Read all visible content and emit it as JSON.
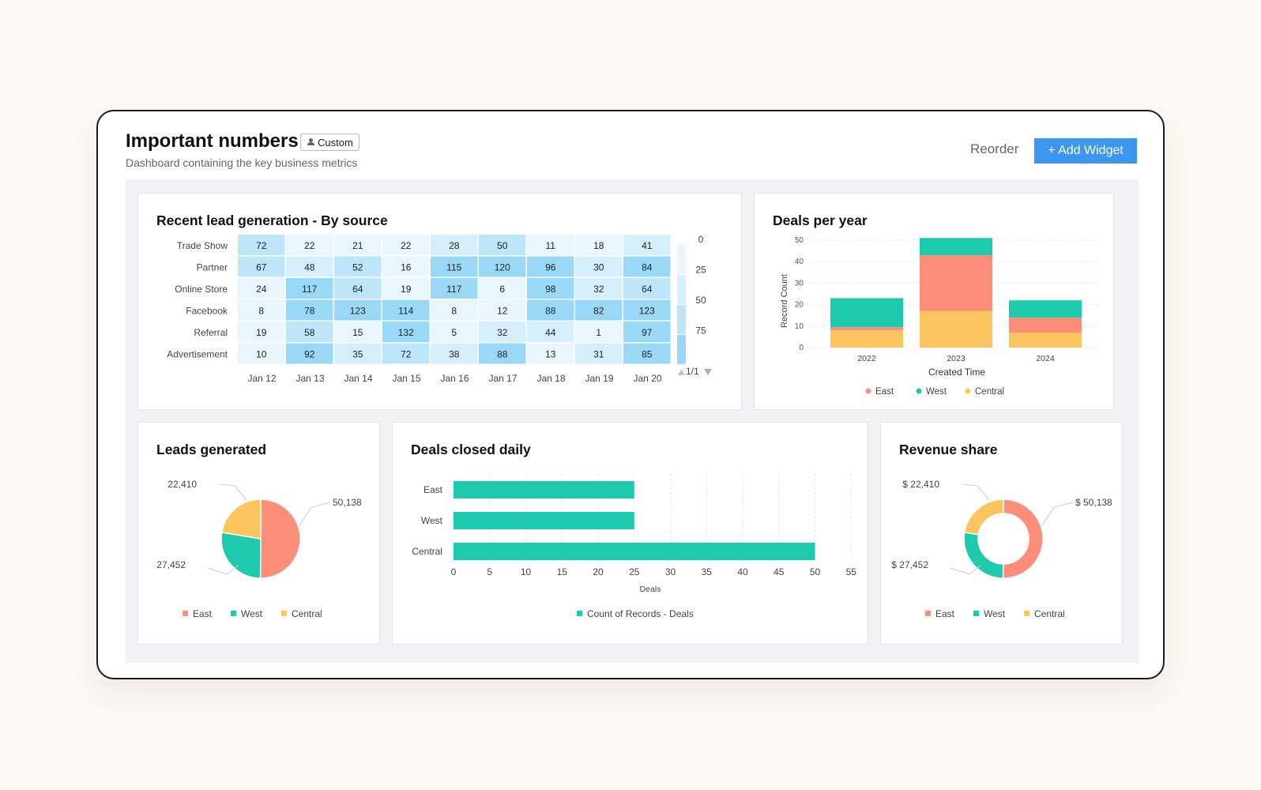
{
  "header": {
    "title": "Important numbers",
    "badge_label": "Custom",
    "subtitle": "Dashboard containing the key business metrics",
    "reorder_label": "Reorder",
    "add_widget_label": "+ Add Widget"
  },
  "colors": {
    "east": "#fd8e7a",
    "west": "#1dcaad",
    "central": "#fdc55f",
    "accent": "#3b97f2"
  },
  "heatmap": {
    "title": "Recent lead generation - By source",
    "rows": [
      "Trade Show",
      "Partner",
      "Online Store",
      "Facebook",
      "Referral",
      "Advertisement"
    ],
    "columns": [
      "Jan 12",
      "Jan 13",
      "Jan 14",
      "Jan 15",
      "Jan 16",
      "Jan 17",
      "Jan 18",
      "Jan 19",
      "Jan 20"
    ],
    "values": [
      [
        72,
        22,
        21,
        22,
        28,
        50,
        11,
        18,
        41
      ],
      [
        67,
        48,
        52,
        16,
        115,
        120,
        96,
        30,
        84
      ],
      [
        24,
        117,
        64,
        19,
        117,
        6,
        98,
        32,
        64
      ],
      [
        8,
        78,
        123,
        114,
        8,
        12,
        88,
        82,
        123
      ],
      [
        19,
        58,
        15,
        132,
        5,
        32,
        44,
        1,
        97
      ],
      [
        10,
        92,
        35,
        72,
        38,
        88,
        13,
        31,
        85
      ]
    ],
    "legend_ticks": [
      "0",
      "25",
      "50",
      "75"
    ],
    "pager": "1/1"
  },
  "deals_per_year": {
    "title": "Deals per year",
    "ylabel": "Record Count",
    "xlabel": "Created Time",
    "y_ticks": [
      "0",
      "10",
      "20",
      "30",
      "40",
      "50"
    ],
    "legend": [
      "East",
      "West",
      "Central"
    ]
  },
  "leads_generated": {
    "title": "Leads generated",
    "labels": [
      "22,410",
      "50,138",
      "27,452"
    ],
    "legend": [
      "East",
      "West",
      "Central"
    ]
  },
  "deals_closed_daily": {
    "title": "Deals closed daily",
    "xlabel": "Deals",
    "x_ticks": [
      "0",
      "5",
      "10",
      "15",
      "20",
      "25",
      "30",
      "35",
      "40",
      "45",
      "50",
      "55"
    ],
    "legend": "Count of Records - Deals"
  },
  "revenue_share": {
    "title": "Revenue share",
    "labels": [
      "$ 22,410",
      "$ 50,138",
      "$ 27,452"
    ],
    "legend": [
      "East",
      "West",
      "Central"
    ]
  },
  "chart_data": [
    {
      "type": "heatmap",
      "title": "Recent lead generation - By source",
      "rows": [
        "Trade Show",
        "Partner",
        "Online Store",
        "Facebook",
        "Referral",
        "Advertisement"
      ],
      "columns": [
        "Jan 12",
        "Jan 13",
        "Jan 14",
        "Jan 15",
        "Jan 16",
        "Jan 17",
        "Jan 18",
        "Jan 19",
        "Jan 20"
      ],
      "values": [
        [
          72,
          22,
          21,
          22,
          28,
          50,
          11,
          18,
          41
        ],
        [
          67,
          48,
          52,
          16,
          115,
          120,
          96,
          30,
          84
        ],
        [
          24,
          117,
          64,
          19,
          117,
          6,
          98,
          32,
          64
        ],
        [
          8,
          78,
          123,
          114,
          8,
          12,
          88,
          82,
          123
        ],
        [
          19,
          58,
          15,
          132,
          5,
          32,
          44,
          1,
          97
        ],
        [
          10,
          92,
          35,
          72,
          38,
          88,
          13,
          31,
          85
        ]
      ],
      "legend_ticks": [
        0,
        25,
        50,
        75
      ]
    },
    {
      "type": "bar",
      "stacked": true,
      "title": "Deals per year",
      "xlabel": "Created Time",
      "ylabel": "Record Count",
      "categories": [
        "2022",
        "2023",
        "2024"
      ],
      "series": [
        {
          "name": "Central",
          "values": [
            8,
            17,
            7
          ]
        },
        {
          "name": "East",
          "values": [
            1.5,
            26,
            7
          ]
        },
        {
          "name": "West",
          "values": [
            13.5,
            8,
            8
          ]
        }
      ],
      "ylim": [
        0,
        50
      ],
      "legend": "bottom"
    },
    {
      "type": "pie",
      "title": "Leads generated",
      "labels": [
        "East",
        "West",
        "Central"
      ],
      "values": [
        50138,
        27452,
        22410
      ],
      "legend": "bottom"
    },
    {
      "type": "bar",
      "orientation": "horizontal",
      "title": "Deals closed daily",
      "xlabel": "Deals",
      "categories": [
        "East",
        "West",
        "Central"
      ],
      "series": [
        {
          "name": "Count of Records - Deals",
          "values": [
            25,
            25,
            50
          ]
        }
      ],
      "xlim": [
        0,
        55
      ],
      "legend": "bottom"
    },
    {
      "type": "pie",
      "donut": true,
      "title": "Revenue share",
      "labels": [
        "East",
        "West",
        "Central"
      ],
      "values": [
        50138,
        27452,
        22410
      ],
      "legend": "bottom"
    }
  ]
}
